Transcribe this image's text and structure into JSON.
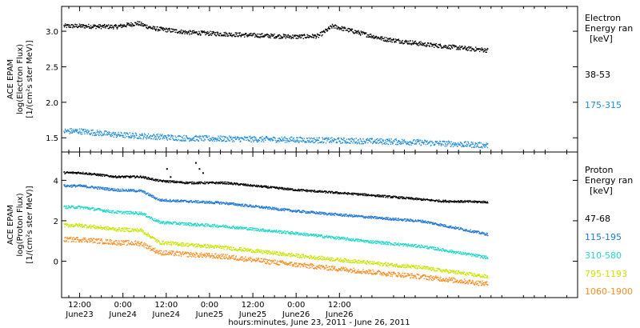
{
  "chart_data": [
    {
      "type": "scatter",
      "panel": "electron",
      "ylabel_lines": [
        "ACE EPAM",
        "log(Electron Flux)",
        "[1/(cm²s ster MeV)]"
      ],
      "ylim": [
        1.3,
        3.35
      ],
      "yticks": [
        1.5,
        2.0,
        2.5,
        3.0
      ],
      "ytick_labels": [
        "1.5",
        "2.0",
        "2.5",
        "3.0"
      ],
      "legend_title_lines": [
        "Electron",
        "Energy ran",
        "[keV]"
      ],
      "series": [
        {
          "name": "38-53",
          "color": "#000000",
          "knots_t": [
            0,
            10,
            16,
            20,
            30,
            48,
            60,
            66,
            70,
            84,
            96,
            108,
            113
          ],
          "knots_v": [
            3.08,
            3.07,
            3.12,
            3.05,
            2.99,
            2.95,
            2.93,
            2.94,
            3.08,
            2.9,
            2.82,
            2.76,
            2.74
          ],
          "spread": 0.03
        },
        {
          "name": "175-315",
          "color": "#1e8cd8",
          "knots_t": [
            0,
            10,
            30,
            60,
            90,
            113
          ],
          "knots_v": [
            1.6,
            1.55,
            1.5,
            1.48,
            1.45,
            1.4
          ],
          "spread": 0.04
        }
      ]
    },
    {
      "type": "scatter",
      "panel": "proton",
      "ylabel_lines": [
        "ACE EPAM",
        "log(Proton Flux)",
        "[1/(cm²s ster MeV)]"
      ],
      "ylim": [
        -1.8,
        5.4
      ],
      "yticks": [
        0,
        2,
        4
      ],
      "ytick_labels": [
        "0",
        "2",
        "4"
      ],
      "legend_title_lines": [
        "Proton",
        "Energy ran",
        "[keV]"
      ],
      "series": [
        {
          "name": "47-68",
          "color": "#000000",
          "knots_t": [
            0,
            10,
            17,
            22,
            30,
            40,
            60,
            80,
            100,
            113
          ],
          "knots_v": [
            4.4,
            4.2,
            4.2,
            4.0,
            3.9,
            3.9,
            3.55,
            3.3,
            3.0,
            2.95
          ],
          "spread": 0.05,
          "spikes": [
            {
              "t": 24,
              "v": 4.6
            },
            {
              "t": 25,
              "v": 4.2
            },
            {
              "t": 32,
              "v": 4.9
            },
            {
              "t": 33,
              "v": 4.6
            },
            {
              "t": 34,
              "v": 4.4
            }
          ]
        },
        {
          "name": "115-195",
          "color": "#1e78d8",
          "knots_t": [
            0,
            10,
            17,
            22,
            40,
            60,
            80,
            95,
            113
          ],
          "knots_v": [
            3.75,
            3.55,
            3.5,
            3.05,
            2.9,
            2.5,
            2.2,
            2.0,
            1.35
          ],
          "spread": 0.06
        },
        {
          "name": "310-580",
          "color": "#20d8c8",
          "knots_t": [
            0,
            10,
            17,
            22,
            40,
            60,
            80,
            95,
            113
          ],
          "knots_v": [
            2.7,
            2.45,
            2.4,
            1.95,
            1.75,
            1.4,
            1.0,
            0.75,
            0.2
          ],
          "spread": 0.07
        },
        {
          "name": "795-1193",
          "color": "#c8e600",
          "knots_t": [
            0,
            10,
            17,
            22,
            40,
            60,
            80,
            95,
            113
          ],
          "knots_v": [
            1.8,
            1.6,
            1.55,
            0.95,
            0.7,
            0.3,
            -0.05,
            -0.3,
            -0.75
          ],
          "spread": 0.09
        },
        {
          "name": "1060-1900",
          "color": "#ff8c1e",
          "knots_t": [
            0,
            10,
            17,
            22,
            40,
            60,
            80,
            95,
            113
          ],
          "knots_v": [
            1.1,
            0.95,
            0.9,
            0.45,
            0.25,
            -0.15,
            -0.5,
            -0.75,
            -1.1
          ],
          "spread": 0.12
        }
      ]
    }
  ],
  "x_axis": {
    "range_hours": [
      -5,
      138
    ],
    "ticks": [
      {
        "t": 0,
        "time": "12:00",
        "date": "June23"
      },
      {
        "t": 12,
        "time": "0:00",
        "date": "June24"
      },
      {
        "t": 24,
        "time": "12:00",
        "date": "June24"
      },
      {
        "t": 36,
        "time": "0:00",
        "date": "June25"
      },
      {
        "t": 48,
        "time": "12:00",
        "date": "June25"
      },
      {
        "t": 60,
        "time": "0:00",
        "date": "June26"
      },
      {
        "t": 72,
        "time": "12:00",
        "date": "June26"
      }
    ],
    "label": "hours:minutes, June 23, 2011 - June 26, 2011"
  }
}
